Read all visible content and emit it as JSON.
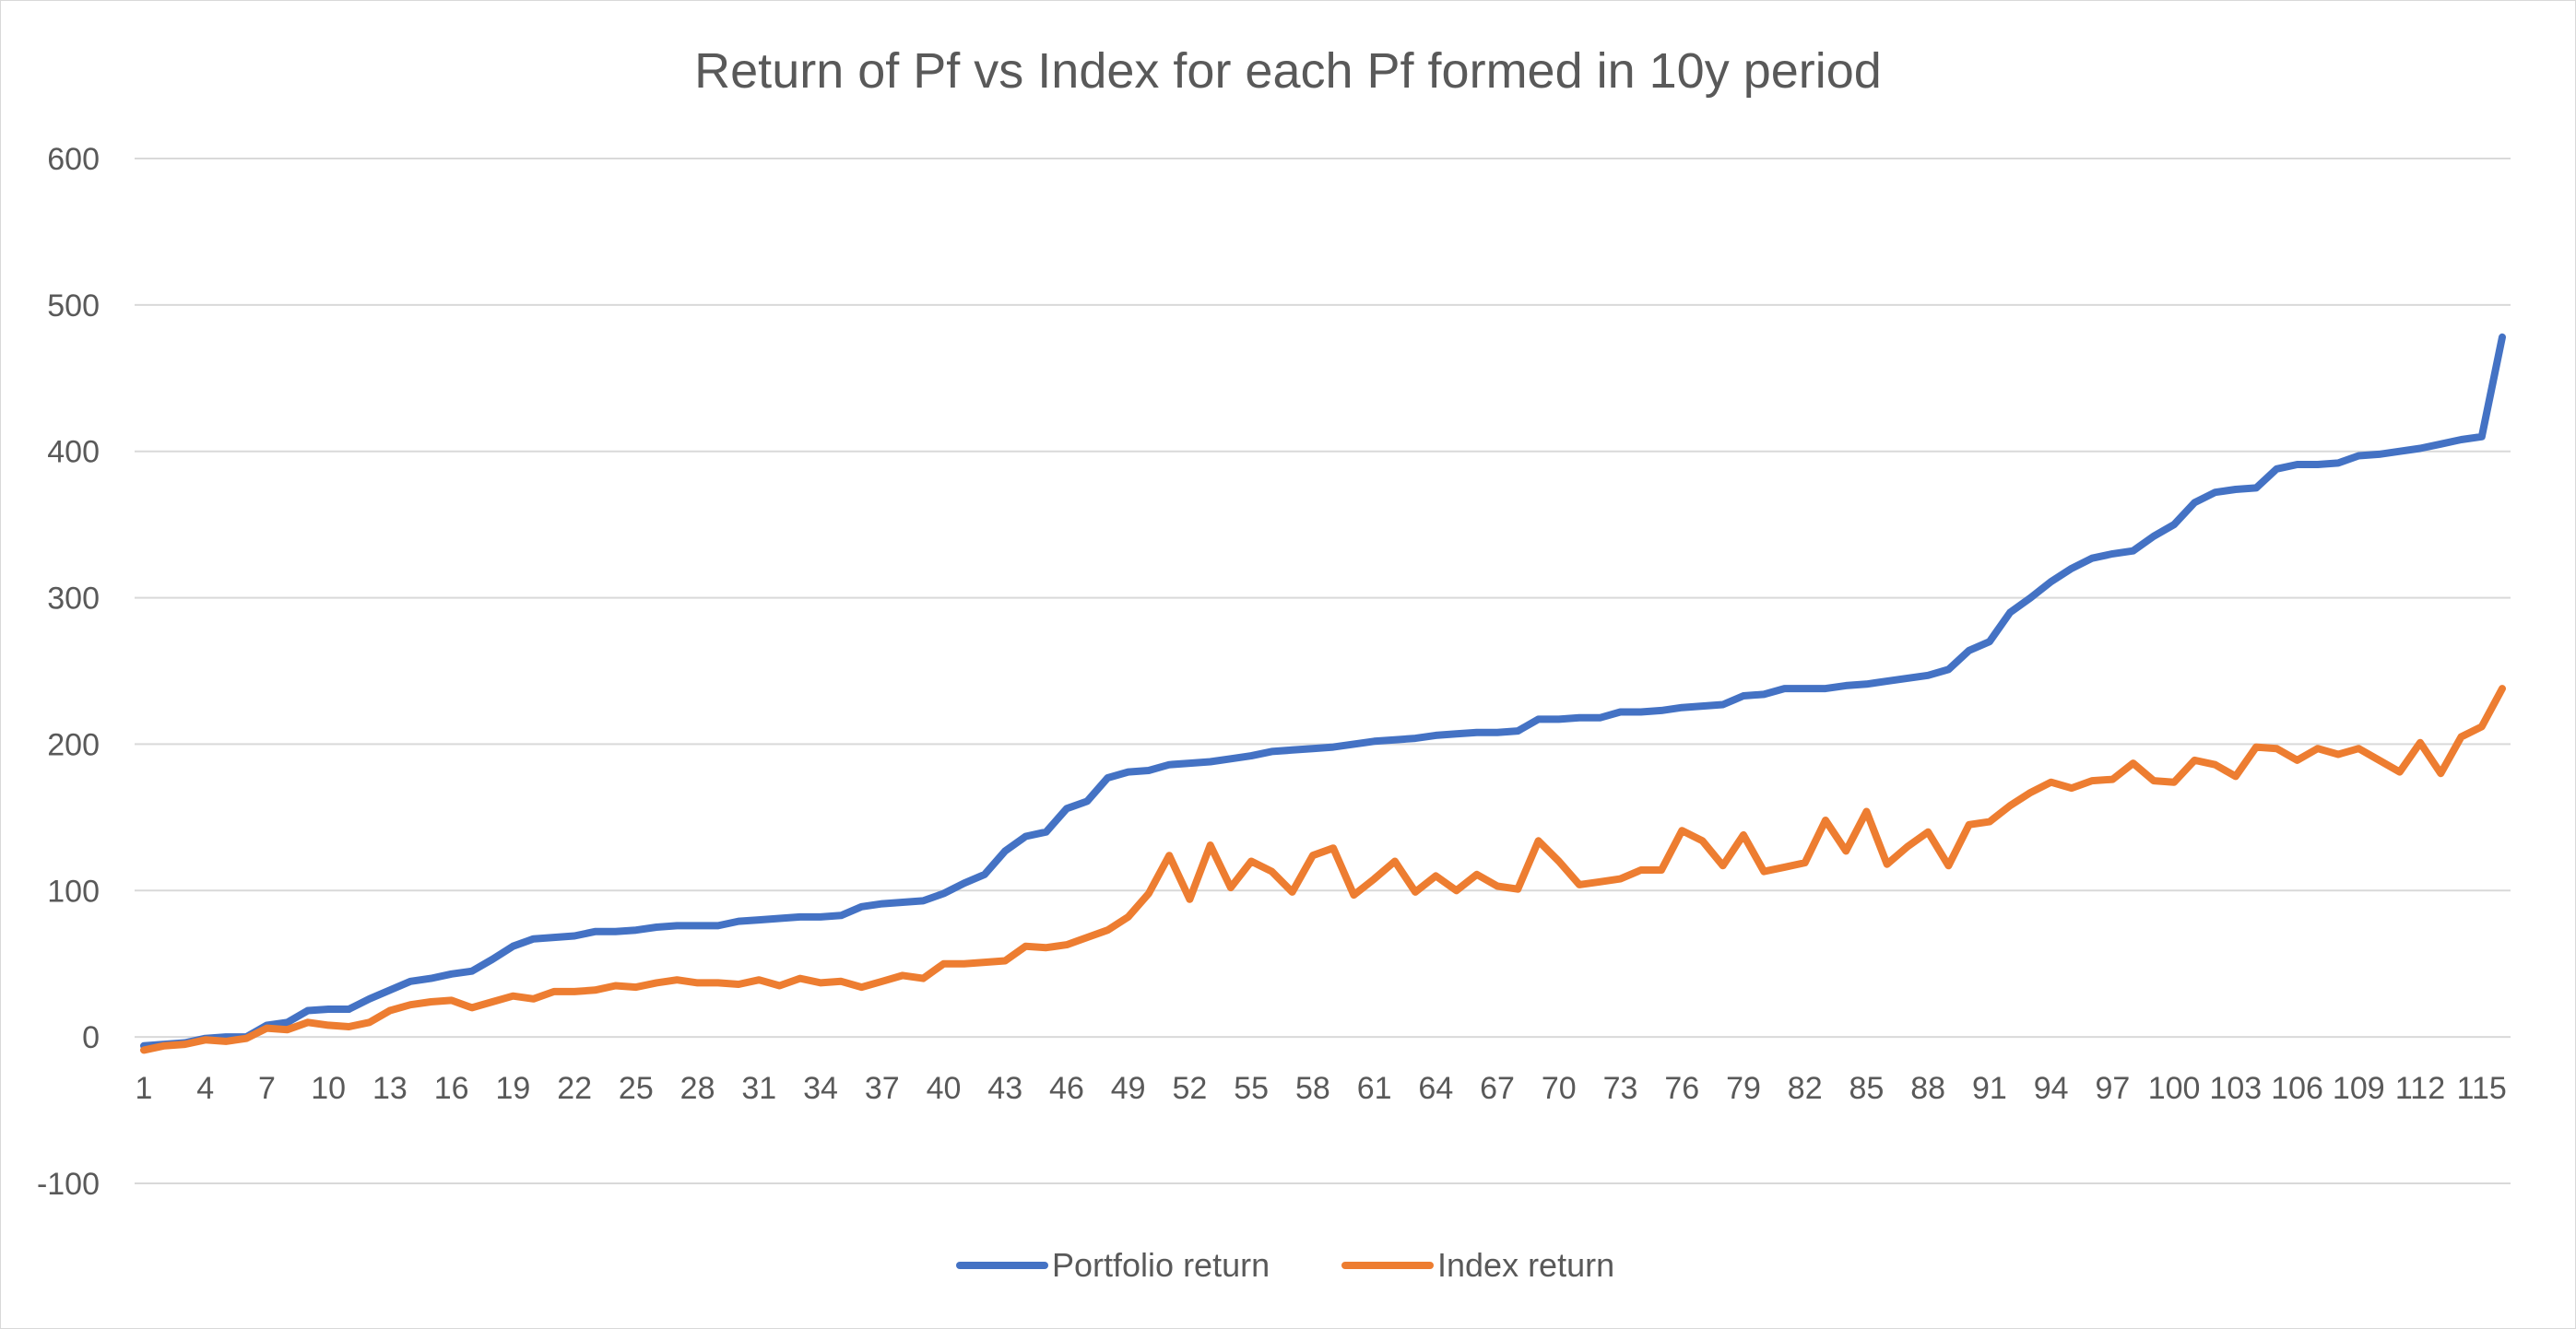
{
  "chart_data": {
    "type": "line",
    "title": "Return of Pf vs Index for each Pf formed in 10y period",
    "xlabel": "",
    "ylabel": "",
    "ylim": [
      -100,
      600
    ],
    "yticks": [
      -100,
      0,
      100,
      200,
      300,
      400,
      500,
      600
    ],
    "xlim": [
      1,
      116
    ],
    "xtick_labels": [
      "1",
      "4",
      "7",
      "10",
      "13",
      "16",
      "19",
      "22",
      "25",
      "28",
      "31",
      "34",
      "37",
      "40",
      "43",
      "46",
      "49",
      "52",
      "55",
      "58",
      "61",
      "64",
      "67",
      "70",
      "73",
      "76",
      "79",
      "82",
      "85",
      "88",
      "91",
      "94",
      "97",
      "100",
      "103",
      "106",
      "109",
      "112",
      "115"
    ],
    "grid": "horizontal",
    "legend_position": "bottom",
    "colors": {
      "portfolio": "#4472C4",
      "index": "#ED7D31"
    },
    "series": [
      {
        "name": "Portfolio return",
        "color": "#4472C4",
        "values": [
          -6,
          -5,
          -4,
          -1,
          0,
          0,
          8,
          10,
          18,
          19,
          19,
          26,
          32,
          38,
          40,
          43,
          45,
          53,
          62,
          67,
          68,
          69,
          72,
          72,
          73,
          75,
          76,
          76,
          76,
          79,
          80,
          81,
          82,
          82,
          83,
          89,
          91,
          92,
          93,
          98,
          105,
          111,
          127,
          137,
          140,
          156,
          161,
          177,
          181,
          182,
          186,
          187,
          188,
          190,
          192,
          195,
          196,
          197,
          198,
          200,
          202,
          203,
          204,
          206,
          207,
          208,
          208,
          209,
          217,
          217,
          218,
          218,
          222,
          222,
          223,
          225,
          226,
          227,
          233,
          234,
          238,
          238,
          238,
          240,
          241,
          243,
          245,
          247,
          251,
          264,
          270,
          290,
          300,
          311,
          320,
          327,
          330,
          332,
          342,
          350,
          365,
          372,
          374,
          375,
          388,
          391,
          391,
          392,
          397,
          398,
          400,
          402,
          405,
          408,
          410,
          478
        ]
      },
      {
        "name": "Index return",
        "color": "#ED7D31",
        "values": [
          -9,
          -6,
          -5,
          -2,
          -3,
          -1,
          6,
          5,
          10,
          8,
          7,
          10,
          18,
          22,
          24,
          25,
          20,
          24,
          28,
          26,
          31,
          31,
          32,
          35,
          34,
          37,
          39,
          37,
          37,
          36,
          39,
          35,
          40,
          37,
          38,
          34,
          38,
          42,
          40,
          50,
          50,
          51,
          52,
          62,
          61,
          63,
          68,
          73,
          82,
          98,
          124,
          94,
          131,
          102,
          120,
          113,
          99,
          124,
          129,
          97,
          108,
          120,
          99,
          110,
          100,
          111,
          103,
          101,
          134,
          120,
          104,
          106,
          108,
          114,
          114,
          141,
          134,
          117,
          138,
          113,
          116,
          119,
          148,
          127,
          154,
          118,
          130,
          140,
          117,
          145,
          147,
          158,
          167,
          174,
          170,
          175,
          176,
          187,
          175,
          174,
          189,
          186,
          178,
          198,
          197,
          189,
          197,
          193,
          197,
          189,
          181,
          201,
          180,
          205,
          212,
          238
        ]
      }
    ]
  }
}
